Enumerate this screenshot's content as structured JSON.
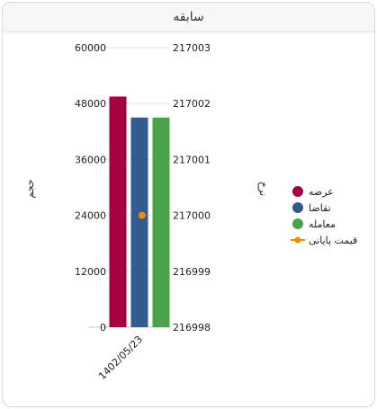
{
  "panel": {
    "title": "سابقه"
  },
  "chart_data": {
    "type": "bar",
    "categories": [
      "1402/05/23"
    ],
    "series": [
      {
        "name": "عرضه",
        "kind": "bar",
        "axis": "left",
        "color": "#a50044",
        "values": [
          49500
        ]
      },
      {
        "name": "تقاضا",
        "kind": "bar",
        "axis": "left",
        "color": "#345a8f",
        "values": [
          45000
        ]
      },
      {
        "name": "معامله",
        "kind": "bar",
        "axis": "left",
        "color": "#4aa24a",
        "values": [
          45000
        ]
      },
      {
        "name": "قیمت پایانی",
        "kind": "line",
        "axis": "right",
        "color": "#f08c00",
        "values": [
          217000
        ]
      }
    ],
    "y_left": {
      "label": "حجم",
      "range": [
        0,
        60000
      ],
      "ticks": [
        "0",
        "12000",
        "24000",
        "36000",
        "48000",
        "60000"
      ]
    },
    "y_right": {
      "label": "نرخ",
      "range": [
        216998,
        217003
      ],
      "ticks": [
        "216998",
        "216999",
        "217000",
        "217001",
        "217002",
        "217003"
      ]
    },
    "grid": true,
    "legend_position": "right"
  }
}
